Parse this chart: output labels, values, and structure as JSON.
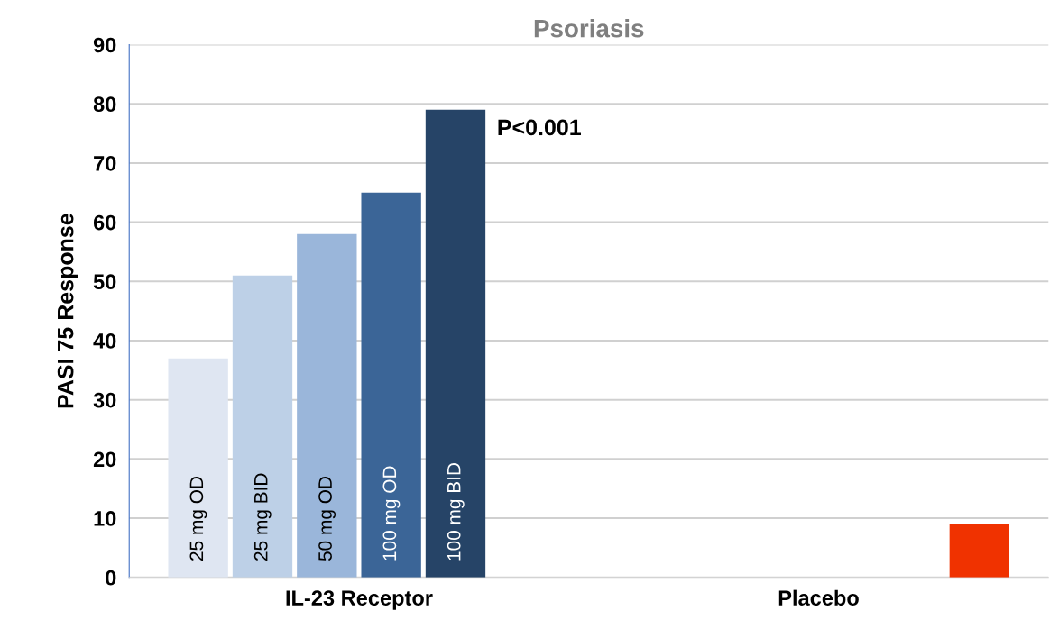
{
  "chart_data": {
    "type": "bar",
    "title": "Psoriasis",
    "ylabel": "PASI 75 Response",
    "categories": [
      "IL-23 Receptor",
      "Placebo"
    ],
    "series": [
      {
        "name": "25 mg OD",
        "color": "#dfe6f2",
        "values": [
          37,
          null
        ]
      },
      {
        "name": "25 mg BID",
        "color": "#bdd0e7",
        "values": [
          51,
          null
        ]
      },
      {
        "name": "50 mg OD",
        "color": "#9ab6da",
        "values": [
          58,
          null
        ]
      },
      {
        "name": "100 mg OD",
        "color": "#3b6597",
        "values": [
          65,
          null
        ]
      },
      {
        "name": "100 mg BID",
        "color": "#264467",
        "values": [
          79,
          null
        ]
      },
      {
        "color": "#f03200",
        "values": [
          null,
          9
        ]
      }
    ],
    "ylim": [
      0,
      90
    ],
    "yticks": [
      0,
      10,
      20,
      30,
      40,
      50,
      60,
      70,
      80,
      90
    ],
    "grid": "y",
    "legend": false,
    "annotations": [
      "P<0.001"
    ]
  }
}
